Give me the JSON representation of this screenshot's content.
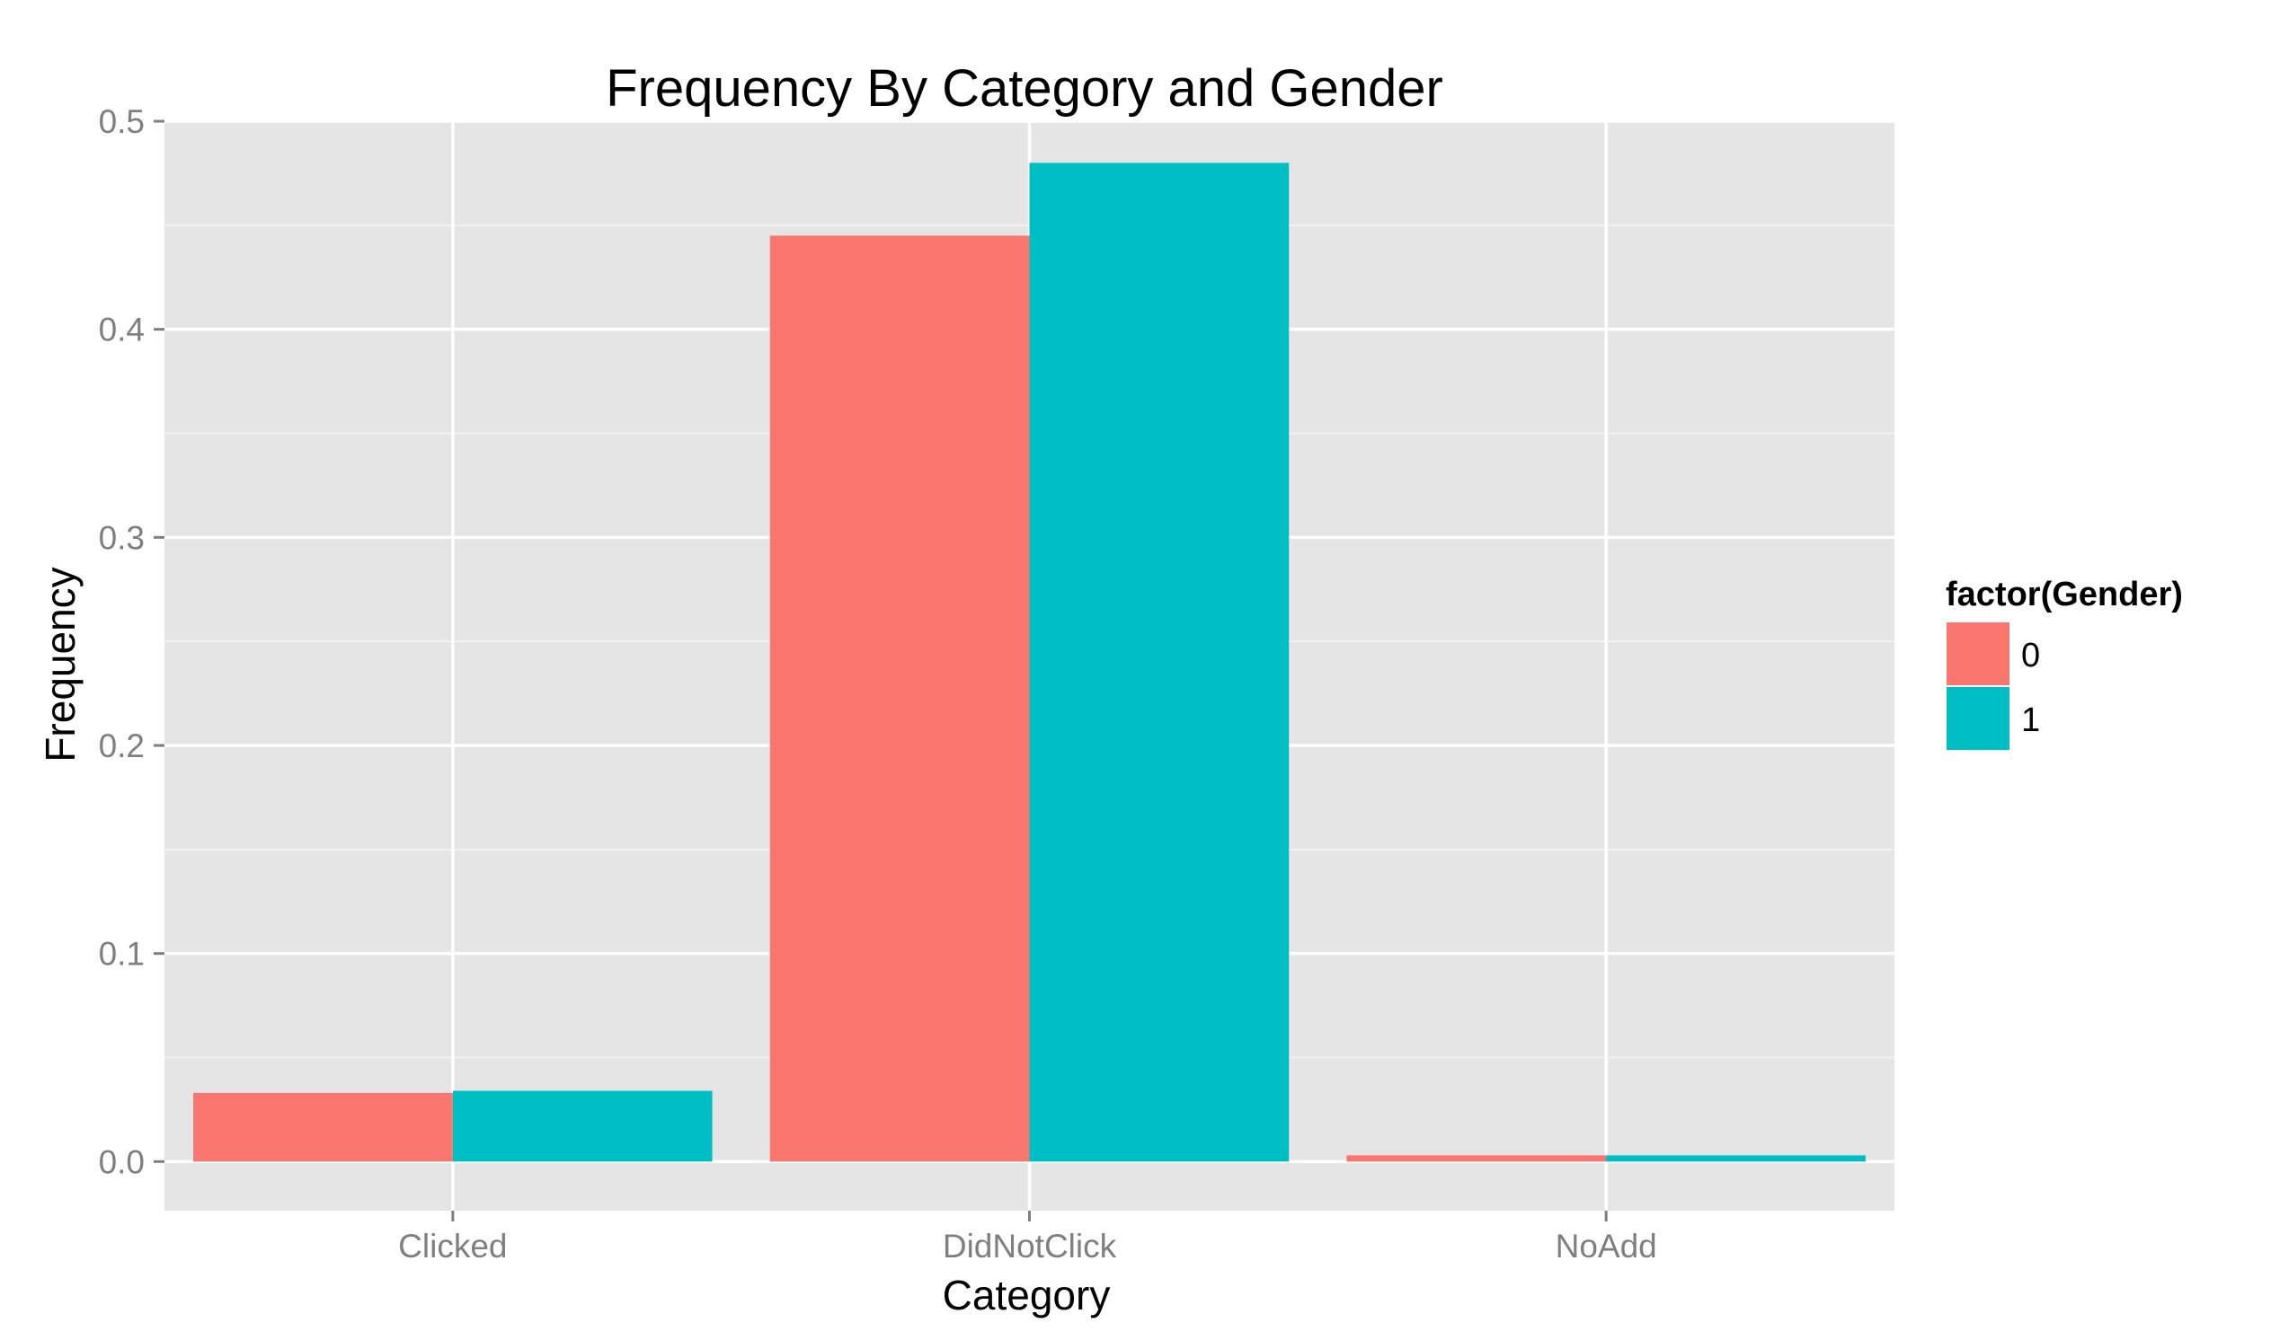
{
  "chart_data": {
    "type": "bar",
    "title": "Frequency By Category and Gender",
    "xlabel": "Category",
    "ylabel": "Frequency",
    "categories": [
      "Clicked",
      "DidNotClick",
      "NoAdd"
    ],
    "series": [
      {
        "name": "0",
        "values": [
          0.033,
          0.445,
          0.003
        ],
        "color": "#F8766D"
      },
      {
        "name": "1",
        "values": [
          0.034,
          0.48,
          0.003
        ],
        "color": "#00BFC4"
      }
    ],
    "ylim": [
      -0.0236,
      0.5
    ],
    "yticks": [
      0.0,
      0.1,
      0.2,
      0.3,
      0.4,
      0.5
    ],
    "ytick_labels": [
      "0.0",
      "0.1",
      "0.2",
      "0.3",
      "0.4",
      "0.5"
    ],
    "grid": true,
    "legend": {
      "title": "factor(Gender)",
      "position": "right"
    },
    "colors": {
      "panel_background": "#E5E5E5",
      "grid_major": "#FFFFFF",
      "grid_minor": "#F2F2F2",
      "axis_text": "#7F7F7F",
      "tick": "#7F7F7F",
      "title_text": "#000000"
    }
  }
}
